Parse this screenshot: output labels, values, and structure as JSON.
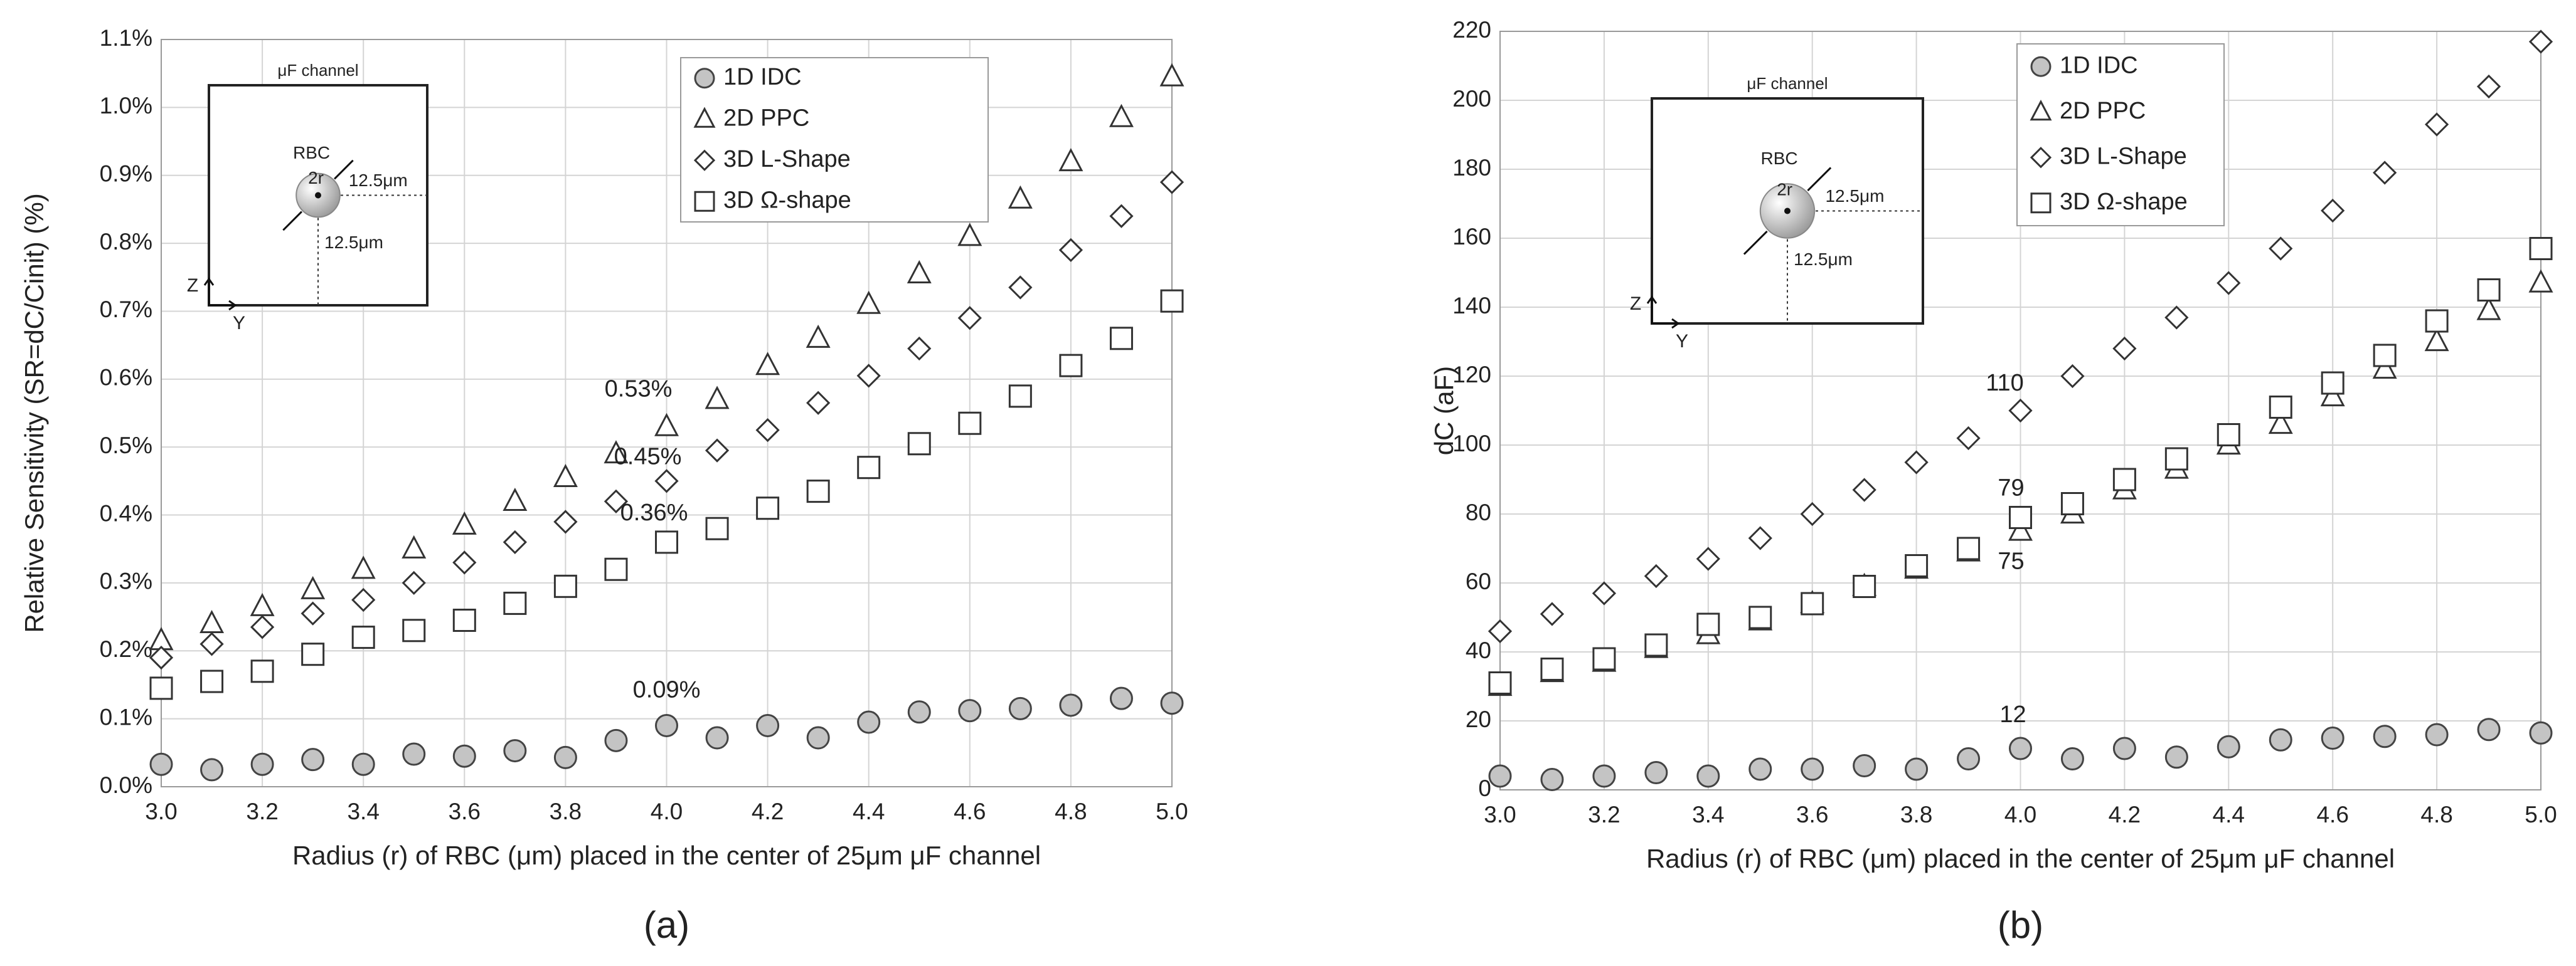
{
  "chart_data": [
    {
      "type": "scatter",
      "panel": "(a)",
      "y_label": "Relative Sensitivity (SR=dC/Cinit) (%)",
      "x_label": "Radius (r) of RBC (μm) placed in the center of 25μm μF channel",
      "x": [
        3.0,
        3.1,
        3.2,
        3.3,
        3.4,
        3.5,
        3.6,
        3.7,
        3.8,
        3.9,
        4.0,
        4.1,
        4.2,
        4.3,
        4.4,
        4.5,
        4.6,
        4.7,
        4.8,
        4.9,
        5.0
      ],
      "series": [
        {
          "name": "1D IDC",
          "marker": "circle",
          "color": "#444444",
          "fill": "#c4c4c4",
          "values": [
            0.033,
            0.025,
            0.033,
            0.04,
            0.033,
            0.048,
            0.045,
            0.053,
            0.043,
            0.068,
            0.09,
            0.072,
            0.09,
            0.072,
            0.095,
            0.11,
            0.112,
            0.115,
            0.12,
            0.13,
            0.123
          ]
        },
        {
          "name": "2D PPC",
          "marker": "triangle",
          "color": "#333333",
          "fill": "#ffffff",
          "values": [
            0.215,
            0.24,
            0.265,
            0.29,
            0.32,
            0.35,
            0.385,
            0.42,
            0.455,
            0.49,
            0.53,
            0.57,
            0.62,
            0.66,
            0.71,
            0.755,
            0.81,
            0.865,
            0.92,
            0.985,
            1.045
          ]
        },
        {
          "name": "3D L-Shape",
          "marker": "diamond",
          "color": "#333333",
          "fill": "#ffffff",
          "values": [
            0.19,
            0.21,
            0.235,
            0.255,
            0.275,
            0.3,
            0.33,
            0.36,
            0.39,
            0.42,
            0.45,
            0.495,
            0.525,
            0.565,
            0.605,
            0.645,
            0.69,
            0.735,
            0.79,
            0.84,
            0.89
          ]
        },
        {
          "name": "3D Ω-shape",
          "marker": "square",
          "color": "#333333",
          "fill": "#ffffff",
          "values": [
            0.145,
            0.155,
            0.17,
            0.195,
            0.22,
            0.23,
            0.245,
            0.27,
            0.295,
            0.32,
            0.36,
            0.38,
            0.41,
            0.435,
            0.47,
            0.505,
            0.535,
            0.575,
            0.62,
            0.66,
            0.715
          ]
        }
      ],
      "annotations": [
        "0.53%",
        "0.45%",
        "0.36%",
        "0.09%"
      ],
      "xlim": [
        3.0,
        5.0
      ],
      "xticks": [
        {
          "value": 3.0,
          "label": "3.0"
        },
        3.2,
        3.4,
        3.6,
        3.8,
        {
          "value": 4.0,
          "label": "4.0"
        },
        4.2,
        4.4,
        4.6,
        4.8,
        {
          "value": 5.0,
          "label": "5.0"
        }
      ],
      "ylim": [
        0,
        1.1
      ],
      "yticks": [
        {
          "value": 0,
          "label": "0.0%"
        },
        {
          "value": 0.1,
          "label": "0.1%"
        },
        {
          "value": 0.2,
          "label": "0.2%"
        },
        {
          "value": 0.3,
          "label": "0.3%"
        },
        {
          "value": 0.4,
          "label": "0.4%"
        },
        {
          "value": 0.5,
          "label": "0.5%"
        },
        {
          "value": 0.6,
          "label": "0.6%"
        },
        {
          "value": 0.7,
          "label": "0.7%"
        },
        {
          "value": 0.8,
          "label": "0.8%"
        },
        {
          "value": 0.9,
          "label": "0.9%"
        },
        {
          "value": 1.0,
          "label": "1.0%"
        },
        {
          "value": 1.1,
          "label": "1.1%"
        }
      ],
      "grid": true,
      "legend": "upper center",
      "inset": {
        "title": "μF channel",
        "cell": "RBC",
        "radius": "2r",
        "dist_y": "12.5μm",
        "dist_z": "12.5μm",
        "axis_z": "Z",
        "axis_y": "Y"
      }
    },
    {
      "type": "scatter",
      "panel": "(b)",
      "y_label": "dC (aF)",
      "x_label": "Radius (r) of RBC (μm) placed in the center of 25μm μF channel",
      "x": [
        3.0,
        3.1,
        3.2,
        3.3,
        3.4,
        3.5,
        3.6,
        3.7,
        3.8,
        3.9,
        4.0,
        4.1,
        4.2,
        4.3,
        4.4,
        4.5,
        4.6,
        4.7,
        4.8,
        4.9,
        5.0
      ],
      "series": [
        {
          "name": "1D IDC",
          "marker": "circle",
          "color": "#444444",
          "fill": "#c4c4c4",
          "values": [
            4,
            3,
            4,
            5,
            4,
            6,
            6,
            7,
            6,
            9,
            12,
            9,
            12,
            9.5,
            12.5,
            14.5,
            15,
            15.5,
            16,
            17.5,
            16.5
          ]
        },
        {
          "name": "2D PPC",
          "marker": "triangle",
          "color": "#333333",
          "fill": "#ffffff",
          "values": [
            30,
            34,
            37,
            41,
            45,
            49,
            54,
            59,
            64,
            69,
            75,
            80,
            87,
            93,
            100,
            106,
            114,
            122,
            130,
            139,
            147
          ]
        },
        {
          "name": "3D L-Shape",
          "marker": "diamond",
          "color": "#333333",
          "fill": "#ffffff",
          "values": [
            46,
            51,
            57,
            62,
            67,
            73,
            80,
            87,
            95,
            102,
            110,
            120,
            128,
            137,
            147,
            157,
            168,
            179,
            193,
            204,
            217
          ]
        },
        {
          "name": "3D Ω-shape",
          "marker": "square",
          "color": "#333333",
          "fill": "#ffffff",
          "values": [
            31,
            35,
            38,
            42,
            48,
            50,
            54,
            59,
            65,
            70,
            79,
            83,
            90,
            96,
            103,
            111,
            118,
            126,
            136,
            145,
            157
          ]
        }
      ],
      "annotations": [
        "110",
        "79",
        "75",
        "12"
      ],
      "xlim": [
        3.0,
        5.0
      ],
      "xticks": [
        {
          "value": 3.0,
          "label": "3.0"
        },
        3.2,
        3.4,
        3.6,
        3.8,
        {
          "value": 4.0,
          "label": "4.0"
        },
        4.2,
        4.4,
        4.6,
        4.8,
        {
          "value": 5.0,
          "label": "5.0"
        }
      ],
      "ylim": [
        0,
        220
      ],
      "yticks": [
        0,
        20,
        40,
        60,
        80,
        100,
        120,
        140,
        160,
        180,
        200,
        220
      ],
      "grid": true,
      "legend": "upper center",
      "inset": {
        "title": "μF channel",
        "cell": "RBC",
        "radius": "2r",
        "dist_y": "12.5μm",
        "dist_z": "12.5μm",
        "axis_z": "Z",
        "axis_y": "Y"
      }
    }
  ]
}
